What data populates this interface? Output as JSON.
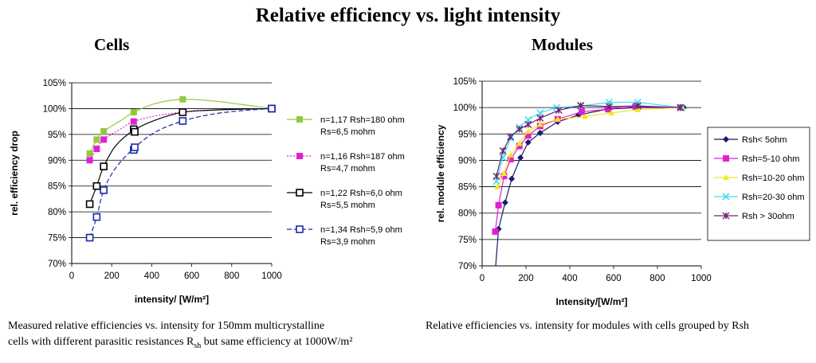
{
  "title": "Relative efficiency vs. light intensity",
  "subtitle_left": "Cells",
  "subtitle_right": "Modules",
  "caption_left_line1": "Measured relative efficiencies vs. intensity for 150mm multicrystalline",
  "caption_left_line2_pre": "cells with different parasitic resistances R",
  "caption_left_line2_sub": "sh",
  "caption_left_line2_post": " but same efficiency at 1000W/m²",
  "caption_right": "Relative efficiencies vs. intensity for modules with cells grouped by Rsh",
  "chart_data": [
    {
      "type": "line",
      "xlabel": "intensity/ [W/m²]",
      "ylabel": "rel. efficiency drop",
      "xlim": [
        0,
        1000
      ],
      "ylim": [
        70,
        105
      ],
      "xticks": [
        "0",
        "200",
        "400",
        "600",
        "800",
        "1000"
      ],
      "yticks": [
        "70%",
        "75%",
        "80%",
        "85%",
        "90%",
        "95%",
        "100%",
        "105%"
      ],
      "grid": "horizontal",
      "legend_position": "right",
      "series": [
        {
          "name_line1": "n=1,17 Rsh=180 ohm",
          "name_line2": "Rs=6,5 mohm",
          "color": "#92C83E",
          "marker": "filled-square",
          "line_style": "solid",
          "x": [
            90,
            125,
            160,
            310,
            555,
            1000
          ],
          "y": [
            91.3,
            94.0,
            95.6,
            99.3,
            101.8,
            100.0
          ],
          "curve_x": [
            90,
            125,
            160,
            250,
            310,
            420,
            555,
            700,
            850,
            1000
          ],
          "curve_y": [
            91.3,
            94.0,
            95.6,
            97.8,
            99.3,
            101.0,
            101.8,
            101.5,
            100.8,
            100.0
          ]
        },
        {
          "name_line1": "n=1,16 Rsh=187 ohm",
          "name_line2": "Rs=4,7 mohm",
          "color": "#E020D0",
          "marker": "filled-square",
          "line_style": "dotted",
          "x": [
            90,
            125,
            160,
            310,
            555,
            1000
          ],
          "y": [
            90.0,
            92.2,
            94.0,
            97.5,
            99.3,
            100.0
          ],
          "curve_x": [
            90,
            125,
            160,
            250,
            310,
            420,
            555,
            700,
            850,
            1000
          ],
          "curve_y": [
            90.0,
            92.2,
            94.0,
            96.2,
            97.5,
            98.6,
            99.3,
            99.7,
            99.9,
            100.0
          ]
        },
        {
          "name_line1": "n=1,22 Rsh=6,0 ohm",
          "name_line2": "Rs=5,5 mohm",
          "color": "#000000",
          "marker": "open-square",
          "line_style": "solid",
          "x": [
            90,
            125,
            160,
            310,
            315,
            555,
            1000
          ],
          "y": [
            81.5,
            85.0,
            88.8,
            96.0,
            95.5,
            99.3,
            100.0
          ],
          "curve_x": [
            90,
            125,
            160,
            220,
            310,
            420,
            555,
            700,
            850,
            1000
          ],
          "curve_y": [
            81.5,
            85.0,
            88.8,
            92.8,
            95.8,
            97.8,
            99.3,
            99.7,
            99.9,
            100.0
          ]
        },
        {
          "name_line1": "n=1,34 Rsh=5,9 ohm",
          "name_line2": "Rs=3,9 mohm",
          "color": "#1A2AA8",
          "marker": "open-square",
          "line_style": "dashed",
          "x": [
            90,
            125,
            160,
            310,
            315,
            555,
            1000
          ],
          "y": [
            75.0,
            79.0,
            84.2,
            92.0,
            92.5,
            97.6,
            100.0
          ],
          "curve_x": [
            90,
            125,
            160,
            220,
            310,
            420,
            555,
            700,
            850,
            1000
          ],
          "curve_y": [
            75.0,
            79.0,
            84.2,
            88.5,
            92.3,
            95.5,
            97.6,
            98.9,
            99.6,
            100.0
          ]
        }
      ]
    },
    {
      "type": "line",
      "xlabel": "Intensity/[W/m²]",
      "ylabel": "rel. module efficiency",
      "xlim": [
        0,
        1000
      ],
      "ylim": [
        70,
        105
      ],
      "xticks": [
        "0",
        "200",
        "400",
        "600",
        "800",
        "1000"
      ],
      "yticks": [
        "70%",
        "75%",
        "80%",
        "85%",
        "90%",
        "95%",
        "100%",
        "105%"
      ],
      "grid": "horizontal",
      "legend_position": "right",
      "series": [
        {
          "name": "Rsh< 5ohm",
          "color": "#1A1A6E",
          "marker": "diamond",
          "x": [
            75,
            105,
            135,
            175,
            210,
            265,
            345,
            440,
            570,
            705,
            920
          ],
          "y": [
            77.0,
            82.0,
            86.5,
            90.5,
            93.4,
            95.2,
            97.3,
            98.6,
            99.7,
            100.0,
            100.0
          ],
          "tail_x": [
            62,
            75
          ],
          "tail_y": [
            70.0,
            77.0
          ]
        },
        {
          "name": "Rsh=5-10 ohm",
          "color": "#E020D0",
          "marker": "filled-square",
          "x": [
            60,
            75,
            100,
            130,
            170,
            210,
            265,
            345,
            455,
            575,
            700,
            905
          ],
          "y": [
            76.5,
            81.5,
            87.0,
            90.2,
            92.7,
            94.7,
            96.5,
            97.8,
            99.2,
            99.7,
            100.2,
            100.0
          ]
        },
        {
          "name": "Rsh=10-20 ohm",
          "color": "#F2E620",
          "marker": "triangle",
          "x": [
            70,
            100,
            130,
            170,
            210,
            265,
            345,
            470,
            590,
            710,
            915
          ],
          "y": [
            85.0,
            87.5,
            91.0,
            93.2,
            95.5,
            96.8,
            97.8,
            98.3,
            99.0,
            99.6,
            100.0
          ]
        },
        {
          "name": "Rsh=20-30 ohm",
          "color": "#40E0F0",
          "marker": "x",
          "x": [
            65,
            95,
            130,
            170,
            210,
            265,
            340,
            450,
            580,
            710,
            910
          ],
          "y": [
            86.0,
            90.5,
            94.2,
            96.3,
            97.7,
            99.0,
            100.0,
            100.3,
            101.0,
            101.0,
            100.0
          ]
        },
        {
          "name": "Rsh > 30ohm",
          "color": "#702070",
          "marker": "star",
          "x": [
            65,
            95,
            130,
            170,
            210,
            265,
            350,
            450,
            580,
            710,
            905
          ],
          "y": [
            87.0,
            91.8,
            94.5,
            95.9,
            96.8,
            98.0,
            99.5,
            100.4,
            100.2,
            100.3,
            100.0
          ]
        }
      ]
    }
  ]
}
